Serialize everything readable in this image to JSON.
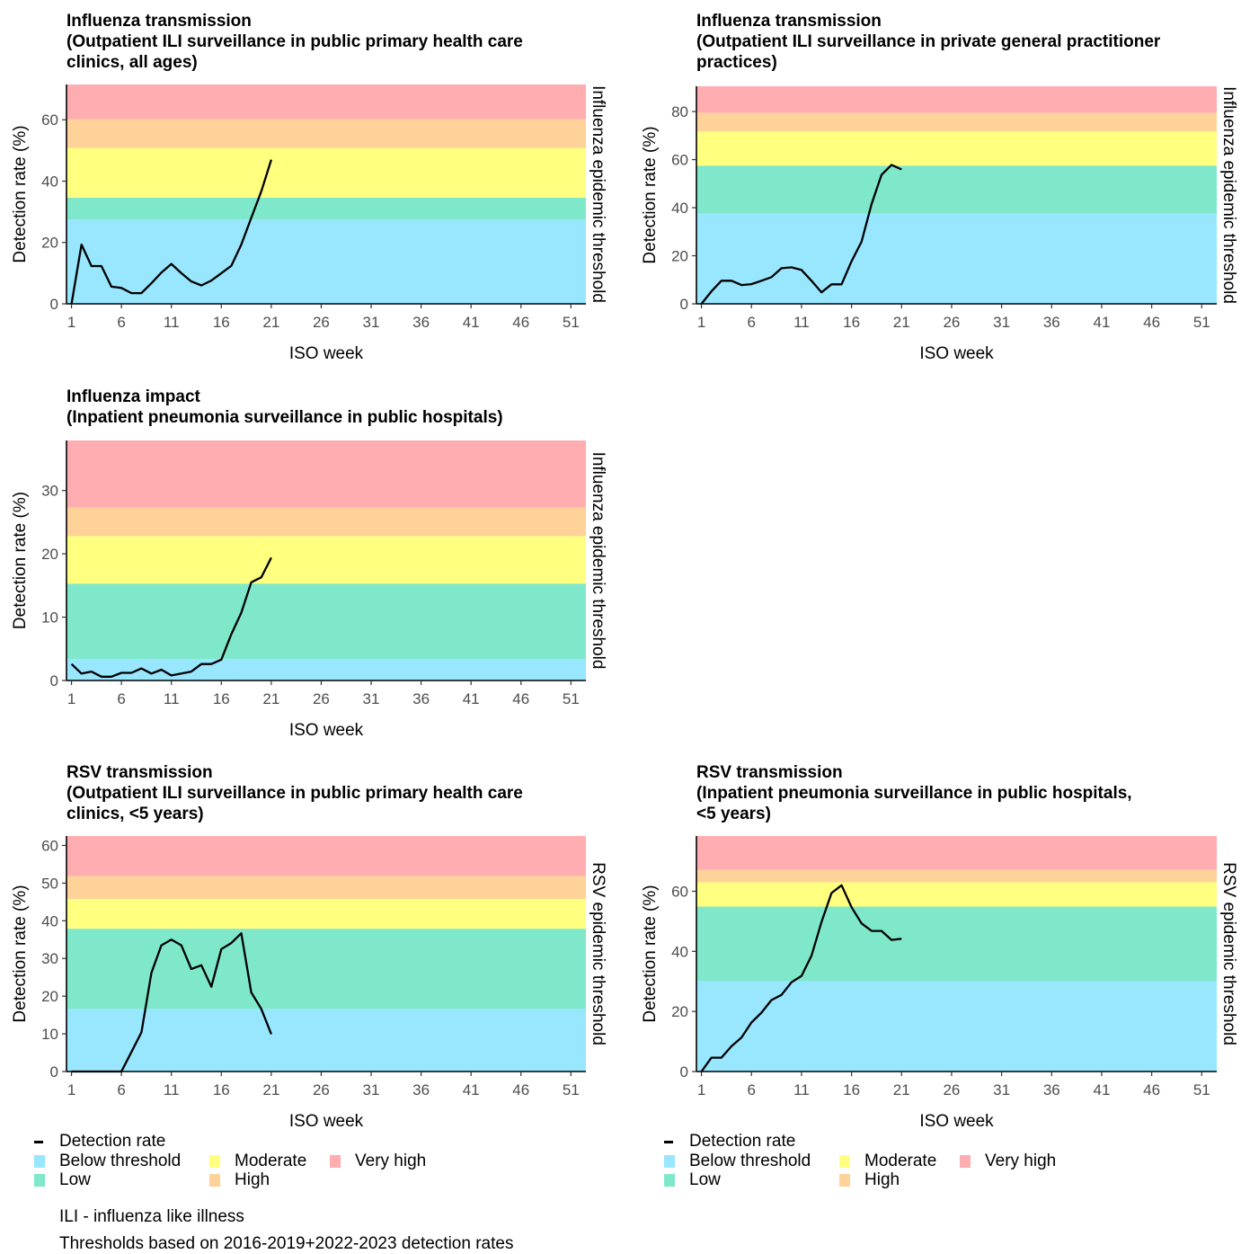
{
  "colors": {
    "below": "#99e6ff",
    "low": "#7fe8cb",
    "moderate": "#ffff80",
    "high": "#ffd299",
    "very_high": "#ffadb0",
    "line": "#000000"
  },
  "chart_data": [
    {
      "type": "line",
      "title": [
        "Influenza transmission",
        "(Outpatient ILI surveillance in public primary health care",
        "clinics, all ages)"
      ],
      "xlabel": "ISO week",
      "ylabel": "Detection rate (%)",
      "right_label": "Influenza epidemic threshold",
      "x_ticks": [
        1,
        6,
        11,
        16,
        21,
        26,
        31,
        36,
        41,
        46,
        51
      ],
      "x_tick_labels": [
        "1",
        "6",
        "11",
        "16",
        "21",
        "26",
        "31",
        "36",
        "41",
        "46",
        "51"
      ],
      "xlim": [
        0.5,
        52.5
      ],
      "y_ticks": [
        0,
        20,
        40,
        60
      ],
      "y_tick_labels": [
        "0",
        "20",
        "40",
        "60"
      ],
      "ylim": [
        0,
        71.5
      ],
      "thresholds": [
        27.5,
        34.6,
        50.8,
        60.2,
        71.5
      ],
      "series": [
        {
          "x": [
            1,
            2,
            3,
            4,
            5,
            6,
            7,
            8,
            9,
            10,
            11,
            12,
            13,
            14,
            15,
            16,
            17,
            18,
            19,
            20,
            21
          ],
          "values": [
            0,
            19.3,
            12.3,
            12.3,
            5.6,
            5.2,
            3.5,
            3.5,
            6.7,
            10.2,
            13,
            10,
            7.3,
            6,
            7.6,
            10,
            12.4,
            19.3,
            28,
            36.7,
            47
          ]
        }
      ]
    },
    {
      "type": "line",
      "title": [
        "Influenza transmission",
        "(Outpatient ILI surveillance in private general practitioner",
        "practices)"
      ],
      "xlabel": "ISO week",
      "ylabel": "Detection rate (%)",
      "right_label": "Influenza epidemic threshold",
      "x_ticks": [
        1,
        6,
        11,
        16,
        21,
        26,
        31,
        36,
        41,
        46,
        51
      ],
      "x_tick_labels": [
        "1",
        "6",
        "11",
        "16",
        "21",
        "26",
        "31",
        "36",
        "41",
        "46",
        "51"
      ],
      "xlim": [
        0.5,
        52.5
      ],
      "y_ticks": [
        0,
        20,
        40,
        60,
        80
      ],
      "y_tick_labels": [
        "0",
        "20",
        "40",
        "60",
        "80"
      ],
      "ylim": [
        0,
        90.5
      ],
      "thresholds": [
        37.5,
        57.5,
        71.7,
        79.5,
        90.5
      ],
      "series": [
        {
          "x": [
            1,
            2,
            3,
            4,
            5,
            6,
            7,
            8,
            9,
            10,
            11,
            12,
            13,
            14,
            15,
            16,
            17,
            18,
            19,
            20,
            21
          ],
          "values": [
            0,
            5.2,
            9.6,
            9.6,
            7.8,
            8.2,
            9.6,
            11.1,
            14.8,
            15.2,
            14.1,
            9.6,
            4.8,
            8.1,
            8.1,
            17.7,
            25.8,
            41.5,
            53.7,
            57.8,
            55.9
          ]
        }
      ]
    },
    {
      "type": "line",
      "title": [
        "Influenza impact",
        "(Inpatient pneumonia surveillance in public hospitals)"
      ],
      "xlabel": "ISO week",
      "ylabel": "Detection rate (%)",
      "right_label": "Influenza epidemic threshold",
      "x_ticks": [
        1,
        6,
        11,
        16,
        21,
        26,
        31,
        36,
        41,
        46,
        51
      ],
      "x_tick_labels": [
        "1",
        "6",
        "11",
        "16",
        "21",
        "26",
        "31",
        "36",
        "41",
        "46",
        "51"
      ],
      "xlim": [
        0.5,
        52.5
      ],
      "y_ticks": [
        0,
        10,
        20,
        30
      ],
      "y_tick_labels": [
        "0",
        "10",
        "20",
        "30"
      ],
      "ylim": [
        0,
        37.9
      ],
      "thresholds": [
        3.4,
        15.3,
        22.8,
        27.3,
        37.9
      ],
      "series": [
        {
          "x": [
            1,
            2,
            3,
            4,
            5,
            6,
            7,
            8,
            9,
            10,
            11,
            12,
            13,
            14,
            15,
            16,
            17,
            18,
            19,
            20,
            21
          ],
          "values": [
            2.6,
            1.1,
            1.4,
            0.6,
            0.6,
            1.2,
            1.2,
            1.9,
            1.1,
            1.7,
            0.8,
            1.1,
            1.4,
            2.6,
            2.6,
            3.3,
            7.3,
            10.7,
            15.5,
            16.3,
            19.4
          ]
        }
      ]
    },
    {
      "type": "line",
      "title": [
        "RSV transmission",
        "(Outpatient ILI surveillance in public primary health care",
        "clinics, <5 years)"
      ],
      "xlabel": "ISO week",
      "ylabel": "Detection rate (%)",
      "right_label": "RSV epidemic threshold",
      "x_ticks": [
        1,
        6,
        11,
        16,
        21,
        26,
        31,
        36,
        41,
        46,
        51
      ],
      "x_tick_labels": [
        "1",
        "6",
        "11",
        "16",
        "21",
        "26",
        "31",
        "36",
        "41",
        "46",
        "51"
      ],
      "xlim": [
        0.5,
        52.5
      ],
      "y_ticks": [
        0,
        10,
        20,
        30,
        40,
        50,
        60
      ],
      "y_tick_labels": [
        "0",
        "10",
        "20",
        "30",
        "40",
        "50",
        "60"
      ],
      "ylim": [
        0,
        62.5
      ],
      "thresholds": [
        16.6,
        37.9,
        45.8,
        51.9,
        62.5
      ],
      "series": [
        {
          "x": [
            1,
            2,
            3,
            4,
            5,
            6,
            7,
            8,
            9,
            10,
            11,
            12,
            13,
            14,
            15,
            16,
            17,
            18,
            19,
            20,
            21
          ],
          "values": [
            0,
            0,
            0,
            0,
            0,
            0,
            5.2,
            10.4,
            26.2,
            33.5,
            35,
            33.5,
            27.2,
            28.2,
            22.5,
            32.5,
            34.1,
            36.7,
            21,
            16.6,
            9.9
          ]
        }
      ]
    },
    {
      "type": "line",
      "title": [
        "RSV transmission",
        "(Inpatient pneumonia surveillance in public hospitals,",
        "<5 years)"
      ],
      "xlabel": "ISO week",
      "ylabel": "Detection rate (%)",
      "right_label": "RSV epidemic threshold",
      "x_ticks": [
        1,
        6,
        11,
        16,
        21,
        26,
        31,
        36,
        41,
        46,
        51
      ],
      "x_tick_labels": [
        "1",
        "6",
        "11",
        "16",
        "21",
        "26",
        "31",
        "36",
        "41",
        "46",
        "51"
      ],
      "xlim": [
        0.5,
        52.5
      ],
      "y_ticks": [
        0,
        20,
        40,
        60
      ],
      "y_tick_labels": [
        "0",
        "20",
        "40",
        "60"
      ],
      "ylim": [
        0,
        78.4
      ],
      "thresholds": [
        30.1,
        54.9,
        63,
        67.1,
        78.4
      ],
      "series": [
        {
          "x": [
            1,
            2,
            3,
            4,
            5,
            6,
            7,
            8,
            9,
            10,
            11,
            12,
            13,
            14,
            15,
            16,
            17,
            18,
            19,
            20,
            21
          ],
          "values": [
            0,
            4.6,
            4.6,
            8.4,
            11.3,
            16.3,
            19.6,
            23.8,
            25.5,
            29.7,
            31.8,
            38.5,
            49.8,
            59.4,
            62,
            54.7,
            49.3,
            46.8,
            46.8,
            43.8,
            44.2
          ]
        }
      ]
    }
  ],
  "legends": [
    {
      "line_label": "Detection rate",
      "items": [
        {
          "key": "below",
          "label": "Below threshold"
        },
        {
          "key": "low",
          "label": "Low"
        },
        {
          "key": "moderate",
          "label": "Moderate"
        },
        {
          "key": "high",
          "label": "High"
        },
        {
          "key": "very_high",
          "label": "Very high"
        }
      ]
    },
    {
      "line_label": "Detection rate",
      "items": [
        {
          "key": "below",
          "label": "Below threshold"
        },
        {
          "key": "low",
          "label": "Low"
        },
        {
          "key": "moderate",
          "label": "Moderate"
        },
        {
          "key": "high",
          "label": "High"
        },
        {
          "key": "very_high",
          "label": "Very high"
        }
      ]
    }
  ],
  "footnotes": {
    "ili": "ILI - influenza like illness",
    "thresholds": "Thresholds based on 2016-2019+2022-2023 detection rates"
  }
}
